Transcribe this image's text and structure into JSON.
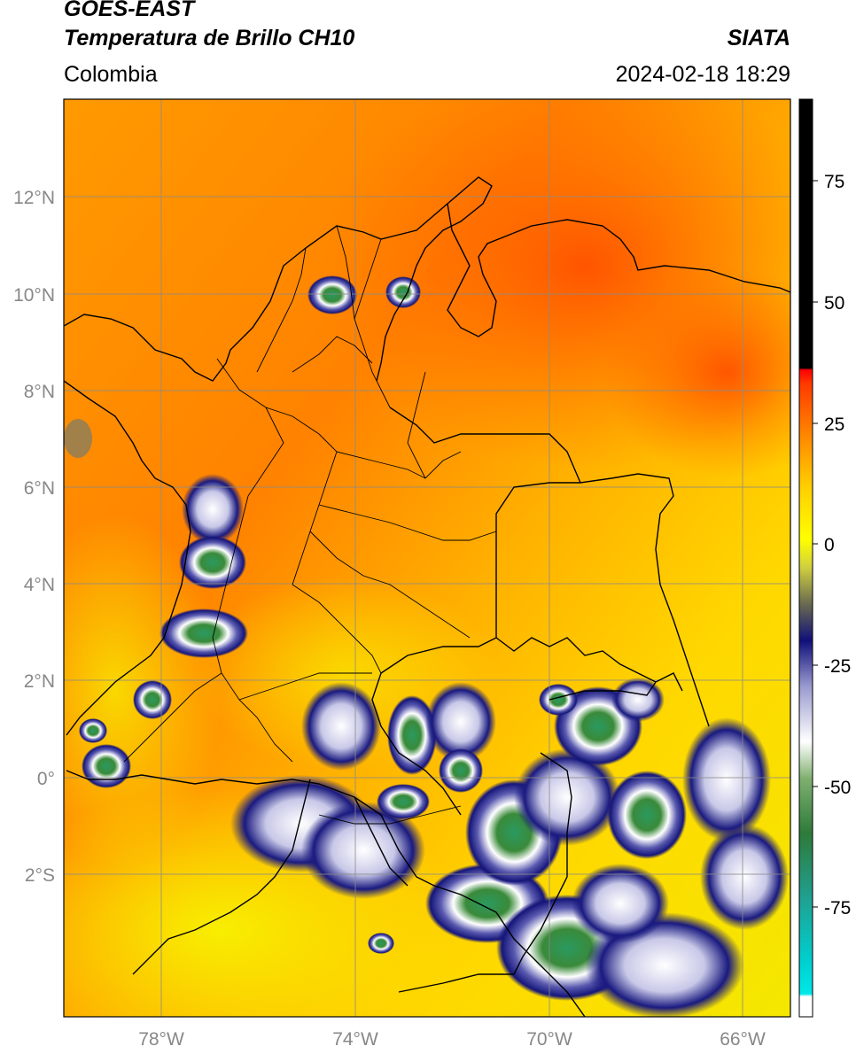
{
  "header": {
    "satellite": "GOES-EAST",
    "product": "Temperatura de Brillo CH10",
    "region": "Colombia",
    "agency": "SIATA",
    "datetime": "2024-02-18 18:29"
  },
  "map": {
    "lon_range": [
      -80.1,
      -65.0
    ],
    "lat_range": [
      -5.2,
      14.0
    ],
    "grid": true,
    "lat_ticks": [
      {
        "value": 12,
        "label": "12°N"
      },
      {
        "value": 10,
        "label": "10°N"
      },
      {
        "value": 8,
        "label": "8°N"
      },
      {
        "value": 6,
        "label": "6°N"
      },
      {
        "value": 4,
        "label": "4°N"
      },
      {
        "value": 2,
        "label": "2°N"
      },
      {
        "value": 0,
        "label": "0°"
      },
      {
        "value": -2,
        "label": "2°S"
      }
    ],
    "lon_ticks": [
      {
        "value": -78,
        "label": "78°W"
      },
      {
        "value": -74,
        "label": "74°W"
      },
      {
        "value": -70,
        "label": "70°W"
      },
      {
        "value": -66,
        "label": "66°W"
      }
    ]
  },
  "colorbar": {
    "range": [
      -95,
      90
    ],
    "ticks": [
      {
        "value": 75,
        "label": "75"
      },
      {
        "value": 50,
        "label": "50"
      },
      {
        "value": 25,
        "label": "25"
      },
      {
        "value": 0,
        "label": "0"
      },
      {
        "value": -25,
        "label": "-25"
      },
      {
        "value": -50,
        "label": "-50"
      },
      {
        "value": -75,
        "label": "-75"
      }
    ],
    "colors": {
      "warm": "#000000",
      "red": "#ff1a00",
      "orange": "#ff8c00",
      "yellow": "#ffe800",
      "olive": "#6b6b3a",
      "navy": "#1a1a80",
      "white": "#ffffff",
      "green": "#3a8a3a",
      "teal": "#20b0a0",
      "cyan": "#00e8e8"
    }
  }
}
